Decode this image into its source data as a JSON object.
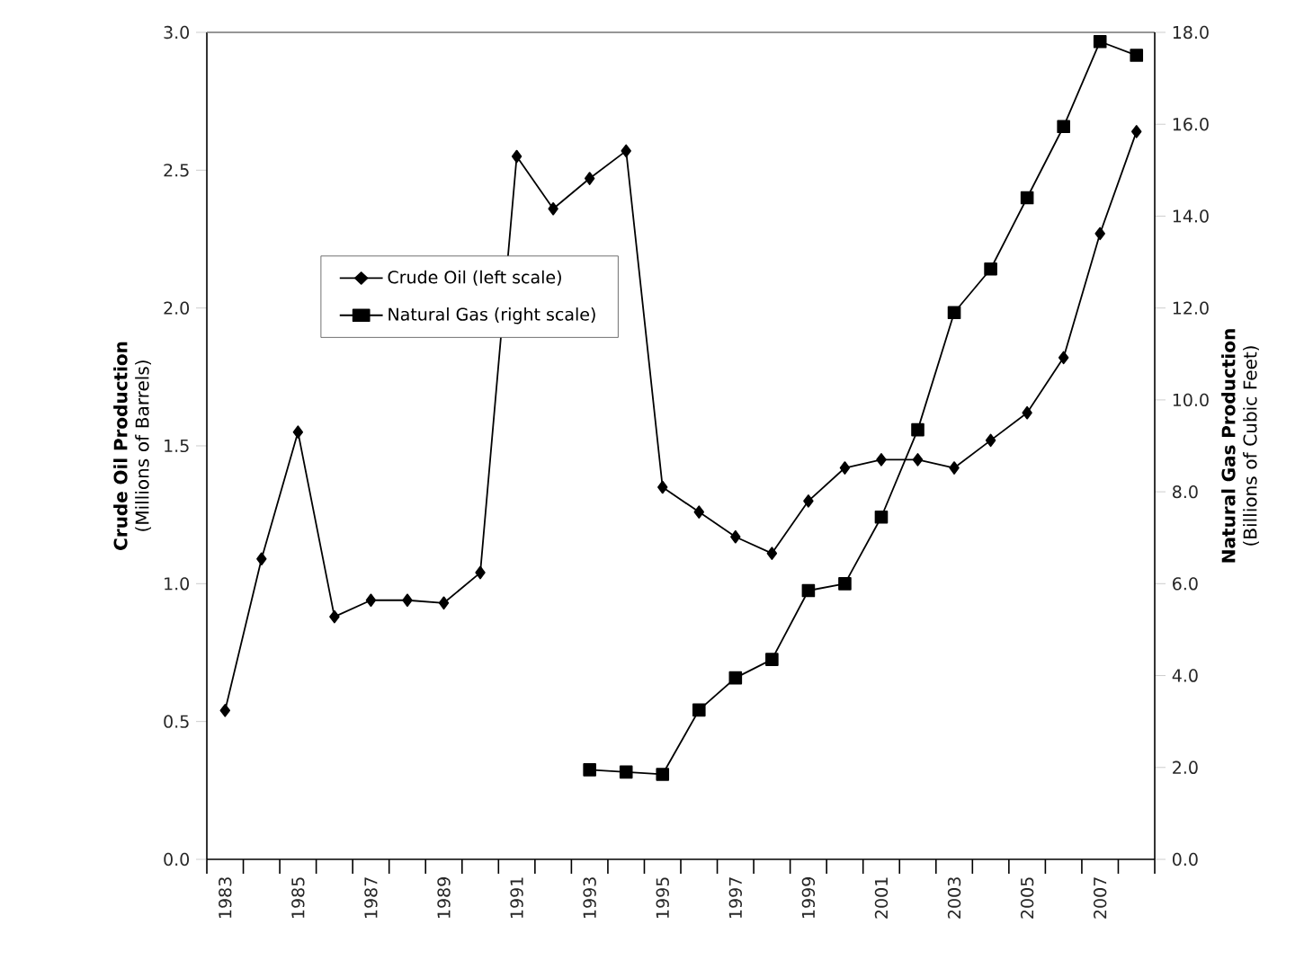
{
  "chart_data": {
    "type": "line",
    "categories": [
      "1983",
      null,
      "1985",
      null,
      "1987",
      null,
      "1989",
      null,
      "1991",
      null,
      "1993",
      null,
      "1995",
      null,
      "1997",
      null,
      "1999",
      null,
      "2001",
      null,
      "2003",
      null,
      "2005",
      null,
      "2007",
      null
    ],
    "series": [
      {
        "name": "Crude Oil (left scale)",
        "color": "#000000",
        "marker": "diamond",
        "values": [
          0.54,
          1.09,
          1.55,
          0.88,
          0.94,
          0.94,
          0.93,
          1.04,
          2.55,
          2.36,
          2.47,
          2.57,
          1.35,
          1.26,
          1.17,
          1.11,
          1.3,
          1.42,
          1.45,
          1.45,
          1.42,
          1.52,
          1.62,
          1.82,
          2.27,
          2.64
        ]
      },
      {
        "name": "Natural Gas (right scale)",
        "color": "#000000",
        "marker": "square",
        "axis": "y2",
        "values": [
          null,
          null,
          null,
          null,
          null,
          null,
          null,
          null,
          null,
          null,
          1.95,
          1.9,
          1.85,
          3.25,
          3.95,
          4.35,
          5.85,
          6.0,
          7.45,
          9.35,
          11.9,
          12.85,
          14.4,
          15.95,
          17.8,
          17.5
        ]
      }
    ],
    "ylabel": "**Crude Oil Production** (Millions of Barrels)",
    "y2label": "**Natural Gas Production** (Billions of Cubic Feet)",
    "ylim": [
      0,
      3
    ],
    "yticks": [
      {
        "value": 0,
        "label": "0.0"
      },
      {
        "value": 0.5,
        "label": "0.5"
      },
      {
        "value": 1,
        "label": "1.0"
      },
      {
        "value": 1.5,
        "label": "1.5"
      },
      {
        "value": 2,
        "label": "2.0"
      },
      {
        "value": 2.5,
        "label": "2.5"
      },
      {
        "value": 3,
        "label": "3.0"
      }
    ],
    "y2lim": [
      0,
      18
    ],
    "y2ticks": [
      {
        "value": 0,
        "label": "0.0"
      },
      {
        "value": 2,
        "label": "2.0"
      },
      {
        "value": 4,
        "label": "4.0"
      },
      {
        "value": 6,
        "label": "6.0"
      },
      {
        "value": 8,
        "label": "8.0"
      },
      {
        "value": 10,
        "label": "10.0"
      },
      {
        "value": 12,
        "label": "12.0"
      },
      {
        "value": 14,
        "label": "14.0"
      },
      {
        "value": 16,
        "label": "16.0"
      },
      {
        "value": 18,
        "label": "18.0"
      }
    ],
    "grid": false,
    "legend": "left",
    "line_style": "solid"
  }
}
